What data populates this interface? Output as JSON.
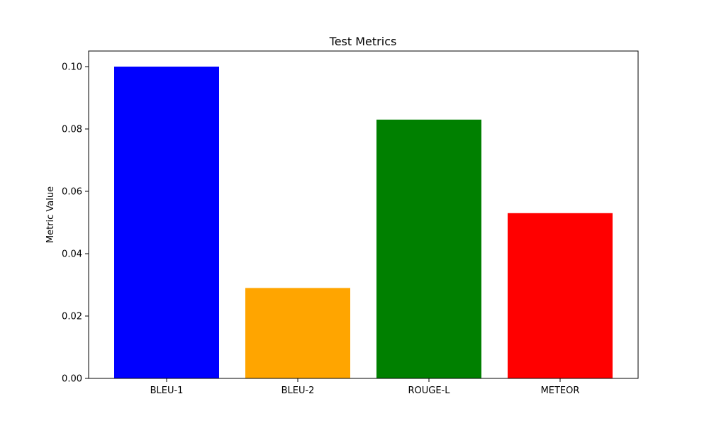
{
  "chart_data": {
    "type": "bar",
    "title": "Test Metrics",
    "xlabel": "",
    "ylabel": "Metric Value",
    "categories": [
      "BLEU-1",
      "BLEU-2",
      "ROUGE-L",
      "METEOR"
    ],
    "values": [
      0.1,
      0.029,
      0.083,
      0.053
    ],
    "colors": [
      "#0000ff",
      "#ffa500",
      "#008000",
      "#ff0000"
    ],
    "ylim": [
      0,
      0.105
    ],
    "yticks": [
      0.0,
      0.02,
      0.04,
      0.06,
      0.08,
      0.1
    ],
    "ytick_labels": [
      "0.00",
      "0.02",
      "0.04",
      "0.06",
      "0.08",
      "0.10"
    ],
    "grid": false,
    "legend": false
  }
}
